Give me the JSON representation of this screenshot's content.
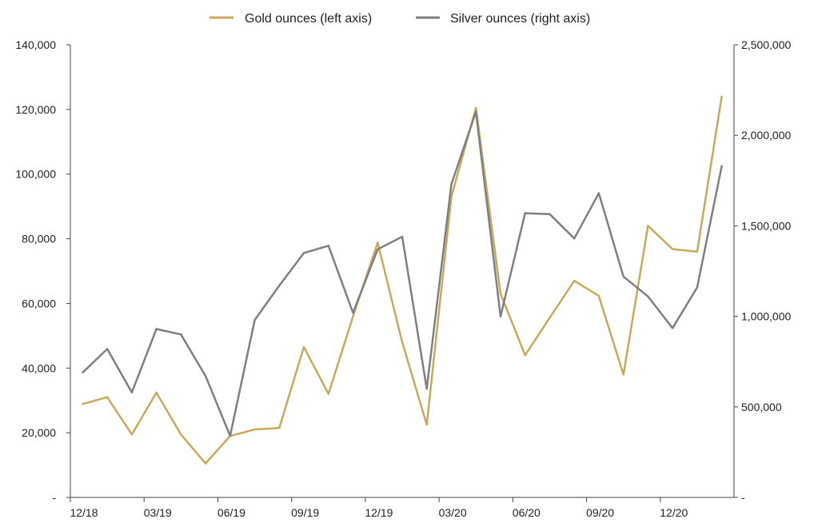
{
  "chart_data": {
    "type": "line",
    "legend": {
      "placement": "top-center"
    },
    "grid": false,
    "colors": {
      "gold": "#C8A95B",
      "silver": "#7F7F7F",
      "axis": "#444444"
    },
    "x": [
      "12/18",
      "01/19",
      "02/19",
      "03/19",
      "04/19",
      "05/19",
      "06/19",
      "07/19",
      "08/19",
      "09/19",
      "10/19",
      "11/19",
      "12/19",
      "01/20",
      "02/20",
      "03/20",
      "04/20",
      "05/20",
      "06/20",
      "07/20",
      "08/20",
      "09/20",
      "10/20",
      "11/20",
      "12/20",
      "01/21",
      "02/21"
    ],
    "x_tick_labels": [
      {
        "index": 0,
        "label": "12/18"
      },
      {
        "index": 3,
        "label": "03/19"
      },
      {
        "index": 6,
        "label": "06/19"
      },
      {
        "index": 9,
        "label": "09/19"
      },
      {
        "index": 12,
        "label": "12/19"
      },
      {
        "index": 15,
        "label": "03/20"
      },
      {
        "index": 18,
        "label": "06/20"
      },
      {
        "index": 21,
        "label": "09/20"
      },
      {
        "index": 24,
        "label": "12/20"
      }
    ],
    "left_axis": {
      "ylim": [
        0,
        140000
      ],
      "ticks": [
        0,
        20000,
        40000,
        60000,
        80000,
        100000,
        120000,
        140000
      ],
      "tick_labels": [
        "-",
        "20,000",
        "40,000",
        "60,000",
        "80,000",
        "100,000",
        "120,000",
        "140,000"
      ]
    },
    "right_axis": {
      "ylim": [
        0,
        2500000
      ],
      "ticks": [
        0,
        500000,
        1000000,
        1500000,
        2000000,
        2500000
      ],
      "tick_labels": [
        "-",
        "500,000",
        "1,000,000",
        "1,500,000",
        "2,000,000",
        "2,500,000"
      ]
    },
    "series": [
      {
        "name": "Gold ounces (left axis)",
        "axis": "left",
        "color": "#C8A95B",
        "values": [
          28900,
          31000,
          19500,
          32400,
          19500,
          10500,
          19000,
          21000,
          21500,
          46500,
          32000,
          56000,
          78800,
          48000,
          22500,
          93000,
          120500,
          63000,
          44000,
          55500,
          67000,
          62300,
          38000,
          84000,
          76800,
          76000,
          124000
        ]
      },
      {
        "name": "Silver ounces (right axis)",
        "axis": "right",
        "color": "#7F7F7F",
        "values": [
          690000,
          820000,
          580000,
          930000,
          900000,
          670000,
          340000,
          980000,
          1170000,
          1350000,
          1390000,
          1020000,
          1370000,
          1440000,
          600000,
          1730000,
          2130000,
          1000000,
          1570000,
          1565000,
          1430000,
          1680000,
          1220000,
          1110000,
          935000,
          1160000,
          1830000
        ]
      }
    ]
  }
}
